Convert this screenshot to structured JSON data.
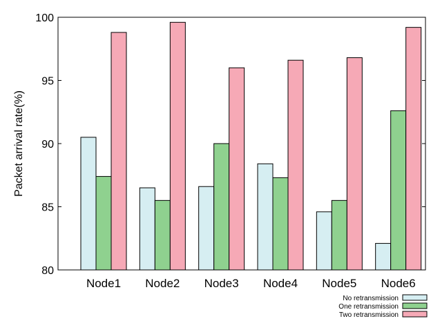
{
  "chart_data": {
    "type": "bar",
    "ylabel": "Packet arrival rate(%)",
    "xlabel": "",
    "ylim": [
      80,
      100
    ],
    "yticks": [
      80,
      85,
      90,
      95,
      100
    ],
    "categories": [
      "Node1",
      "Node2",
      "Node3",
      "Node4",
      "Node5",
      "Node6"
    ],
    "series": [
      {
        "name": "No retransmission",
        "color": "#d6eef2",
        "values": [
          90.5,
          86.5,
          86.6,
          88.4,
          84.6,
          82.1
        ]
      },
      {
        "name": "One retransmission",
        "color": "#8fd18f",
        "values": [
          87.4,
          85.5,
          90.0,
          87.3,
          85.5,
          92.6
        ]
      },
      {
        "name": "Two retransmission",
        "color": "#f6a9b6",
        "values": [
          98.8,
          99.6,
          96.0,
          96.6,
          96.8,
          99.2
        ]
      }
    ],
    "legend_position": "bottom-right",
    "grid": false
  }
}
